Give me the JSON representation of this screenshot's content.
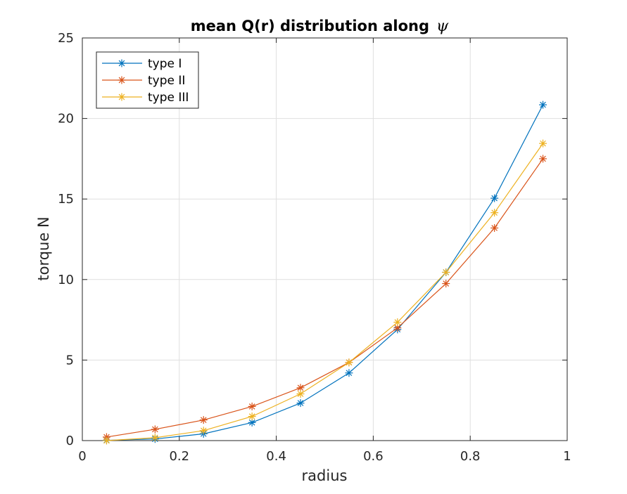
{
  "chart_data": {
    "type": "line",
    "title": "mean Q(r) distribution along",
    "title_symbol": "ψ",
    "xlabel": "radius",
    "ylabel": "torque N",
    "xlim": [
      0,
      1
    ],
    "ylim": [
      0,
      25
    ],
    "xticks": [
      0,
      0.2,
      0.4,
      0.6,
      0.8,
      1
    ],
    "xtick_labels": [
      "0",
      "0.2",
      "0.4",
      "0.6",
      "0.8",
      "1"
    ],
    "yticks": [
      0,
      5,
      10,
      15,
      20,
      25
    ],
    "ytick_labels": [
      "0",
      "5",
      "10",
      "15",
      "20",
      "25"
    ],
    "grid": true,
    "legend_position": "top-left",
    "marker": "asterisk",
    "x": [
      0.05,
      0.15,
      0.25,
      0.35,
      0.45,
      0.55,
      0.65,
      0.75,
      0.85,
      0.95
    ],
    "series": [
      {
        "name": "type I",
        "color": "#0072bd",
        "values": [
          0.02,
          0.1,
          0.42,
          1.12,
          2.33,
          4.2,
          6.9,
          10.45,
          15.05,
          20.85
        ]
      },
      {
        "name": "type II",
        "color": "#d95319",
        "values": [
          0.22,
          0.7,
          1.28,
          2.12,
          3.28,
          4.85,
          7.0,
          9.75,
          13.2,
          17.5
        ]
      },
      {
        "name": "type III",
        "color": "#edb120",
        "values": [
          0.0,
          0.18,
          0.62,
          1.5,
          2.9,
          4.85,
          7.35,
          10.45,
          14.15,
          18.45
        ]
      }
    ]
  }
}
